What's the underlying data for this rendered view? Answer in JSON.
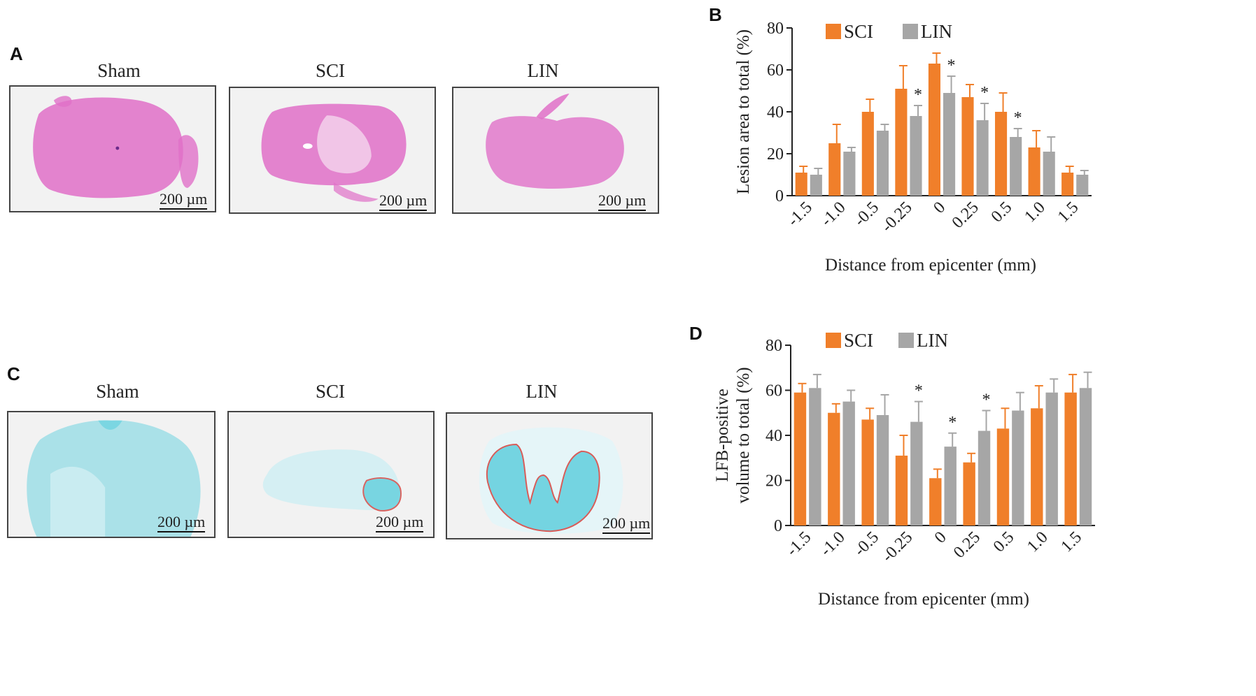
{
  "panels": {
    "A": {
      "letter": "A",
      "images": [
        {
          "title": "Sham",
          "scale": "200 µm"
        },
        {
          "title": "SCI",
          "scale": "200 µm"
        },
        {
          "title": "LIN",
          "scale": "200 µm"
        }
      ]
    },
    "C": {
      "letter": "C",
      "images": [
        {
          "title": "Sham",
          "scale": "200 µm"
        },
        {
          "title": "SCI",
          "scale": "200 µm"
        },
        {
          "title": "LIN",
          "scale": "200 µm"
        }
      ]
    },
    "B": {
      "letter": "B"
    },
    "D": {
      "letter": "D"
    }
  },
  "colors": {
    "he_stain": "#e070c8",
    "lfb_stain": "#6fd3e0",
    "outline": "#d9534f",
    "sci": "#f07f2a",
    "lin": "#a6a6a6"
  },
  "chart_data": [
    {
      "id": "B",
      "type": "bar",
      "categories": [
        "-1.5",
        "-1.0",
        "-0.5",
        "-0.25",
        "0",
        "0.25",
        "0.5",
        "1.0",
        "1.5"
      ],
      "series": [
        {
          "name": "SCI",
          "values": [
            11,
            25,
            40,
            51,
            63,
            47,
            40,
            23,
            11
          ],
          "errors": [
            3,
            9,
            6,
            11,
            5,
            6,
            9,
            8,
            3
          ]
        },
        {
          "name": "LIN",
          "values": [
            10,
            21,
            31,
            38,
            49,
            36,
            28,
            21,
            10
          ],
          "errors": [
            3,
            2,
            3,
            5,
            8,
            8,
            4,
            7,
            2
          ]
        }
      ],
      "significance": [
        "",
        "",
        "",
        "*",
        "*",
        "*",
        "*",
        "",
        ""
      ],
      "ylabel": "Lesion area to total (%)",
      "xlabel": "Distance from epicenter (mm)",
      "ylim": [
        0,
        80
      ],
      "yticks": [
        0,
        20,
        40,
        60,
        80
      ],
      "legend": "top-left"
    },
    {
      "id": "D",
      "type": "bar",
      "categories": [
        "-1.5",
        "-1.0",
        "-0.5",
        "-0.25",
        "0",
        "0.25",
        "0.5",
        "1.0",
        "1.5"
      ],
      "series": [
        {
          "name": "SCI",
          "values": [
            59,
            50,
            47,
            31,
            21,
            28,
            43,
            52,
            59
          ],
          "errors": [
            4,
            4,
            5,
            9,
            4,
            4,
            9,
            10,
            8
          ]
        },
        {
          "name": "LIN",
          "values": [
            61,
            55,
            49,
            46,
            35,
            42,
            51,
            59,
            61
          ],
          "errors": [
            6,
            5,
            9,
            9,
            6,
            9,
            8,
            6,
            7
          ]
        }
      ],
      "significance": [
        "",
        "",
        "",
        "*",
        "*",
        "*",
        "",
        "",
        ""
      ],
      "ylabel_lines": [
        "LFB-positive",
        "volume to total (%)"
      ],
      "xlabel": "Distance from epicenter (mm)",
      "ylim": [
        0,
        80
      ],
      "yticks": [
        0,
        20,
        40,
        60,
        80
      ],
      "legend": "top-left"
    }
  ]
}
